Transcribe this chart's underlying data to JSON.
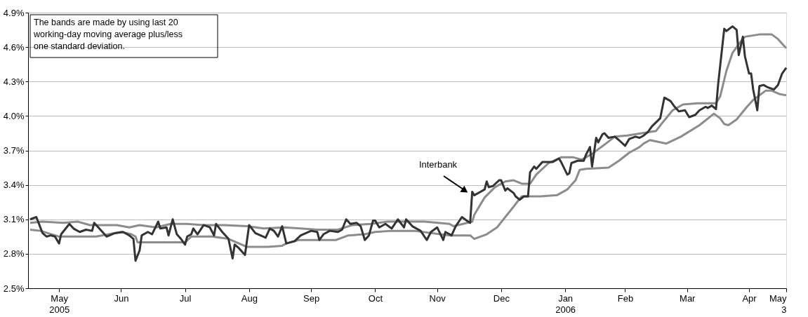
{
  "chart_data": {
    "type": "line",
    "xlim": [
      "2005-05-01",
      "2006-05-03"
    ],
    "xticks": [
      {
        "value": "2005-05-16",
        "label": "May 2005"
      },
      {
        "value": "2005-06-15",
        "label": "Jun"
      },
      {
        "value": "2005-07-16",
        "label": "Jul"
      },
      {
        "value": "2005-08-16",
        "label": "Aug"
      },
      {
        "value": "2005-09-15",
        "label": "Sep"
      },
      {
        "value": "2005-10-16",
        "label": "Oct"
      },
      {
        "value": "2005-11-15",
        "label": "Nov"
      },
      {
        "value": "2005-12-16",
        "label": "Dec"
      },
      {
        "value": "2006-01-16",
        "label": "Jan 2006"
      },
      {
        "value": "2006-02-14",
        "label": "Feb"
      },
      {
        "value": "2006-03-16",
        "label": "Mar"
      },
      {
        "value": "2006-04-15",
        "label": "Apr"
      },
      {
        "value": "2006-05-03",
        "label": "May 3"
      }
    ],
    "ylim": [
      2.5,
      4.9
    ],
    "yticks": [
      {
        "value": 2.5,
        "label": "2.5%"
      },
      {
        "value": 2.8,
        "label": "2.8%"
      },
      {
        "value": 3.1,
        "label": "3.1%"
      },
      {
        "value": 3.4,
        "label": "3.4%"
      },
      {
        "value": 3.7,
        "label": "3.7%"
      },
      {
        "value": 4.0,
        "label": "4.0%"
      },
      {
        "value": 4.3,
        "label": "4.3%"
      },
      {
        "value": 4.6,
        "label": "4.6%"
      },
      {
        "value": 4.9,
        "label": "4.9%"
      }
    ],
    "grid": "y",
    "annotations": [
      "The bands are made by using last 20 working-day moving average plus/less one standard deviation."
    ],
    "series": [
      {
        "color": "#8c8c8c",
        "x": [
          "2005-05-02",
          "2005-05-08",
          "2005-05-18",
          "2005-05-25",
          "2005-05-31",
          "2005-06-13",
          "2005-06-19",
          "2005-06-24",
          "2005-07-02",
          "2005-07-09",
          "2005-07-17",
          "2005-07-25",
          "2005-08-04",
          "2005-08-15",
          "2005-08-23",
          "2005-09-02",
          "2005-09-10",
          "2005-09-18",
          "2005-09-28",
          "2005-10-05",
          "2005-10-14",
          "2005-10-22",
          "2005-11-02",
          "2005-11-09",
          "2005-11-21",
          "2005-11-23",
          "2005-12-02",
          "2005-12-03",
          "2005-12-08",
          "2005-12-13",
          "2005-12-18",
          "2005-12-22",
          "2005-12-26",
          "2005-12-30",
          "2006-01-02",
          "2006-01-08",
          "2006-01-14",
          "2006-01-20",
          "2006-01-24",
          "2006-01-29",
          "2006-02-04",
          "2006-02-09",
          "2006-02-15",
          "2006-02-22",
          "2006-03-01",
          "2006-03-04",
          "2006-03-09",
          "2006-03-14",
          "2006-03-21",
          "2006-03-30",
          "2006-04-01",
          "2006-04-04",
          "2006-04-07",
          "2006-04-11",
          "2006-04-13",
          "2006-04-20",
          "2006-04-26",
          "2006-04-29",
          "2006-05-03"
        ],
        "values": [
          3.07,
          3.08,
          3.07,
          3.08,
          3.05,
          3.05,
          3.03,
          3.05,
          3.03,
          3.06,
          3.06,
          3.05,
          3.05,
          3.04,
          3.02,
          3.03,
          3.02,
          3.01,
          3.01,
          3.05,
          3.06,
          3.08,
          3.08,
          3.08,
          3.06,
          3.04,
          3.08,
          3.14,
          3.29,
          3.38,
          3.43,
          3.44,
          3.41,
          3.41,
          3.49,
          3.59,
          3.64,
          3.64,
          3.62,
          3.67,
          3.75,
          3.82,
          3.83,
          3.85,
          3.87,
          3.94,
          4.05,
          4.1,
          4.11,
          4.11,
          4.17,
          4.39,
          4.55,
          4.65,
          4.69,
          4.71,
          4.71,
          4.67,
          4.59
        ]
      },
      {
        "color": "#8c8c8c",
        "x": [
          "2005-05-02",
          "2005-05-07",
          "2005-05-16",
          "2005-05-21",
          "2005-06-03",
          "2005-06-09",
          "2005-06-15",
          "2005-06-20",
          "2005-06-22",
          "2005-06-23",
          "2005-07-02",
          "2005-07-09",
          "2005-07-16",
          "2005-07-19",
          "2005-07-29",
          "2005-08-06",
          "2005-08-15",
          "2005-08-25",
          "2005-09-01",
          "2005-09-03",
          "2005-09-09",
          "2005-09-27",
          "2005-10-03",
          "2005-10-11",
          "2005-10-16",
          "2005-10-24",
          "2005-11-04",
          "2005-11-21",
          "2005-12-01",
          "2005-12-03",
          "2005-12-09",
          "2005-12-14",
          "2005-12-18",
          "2005-12-22",
          "2005-12-25",
          "2005-12-26",
          "2006-01-04",
          "2006-01-12",
          "2006-01-17",
          "2006-01-21",
          "2006-01-23",
          "2006-01-26",
          "2006-02-06",
          "2006-02-11",
          "2006-02-16",
          "2006-02-21",
          "2006-02-23",
          "2006-02-26",
          "2006-03-06",
          "2006-03-13",
          "2006-03-22",
          "2006-03-29",
          "2006-04-01",
          "2006-04-03",
          "2006-04-05",
          "2006-04-09",
          "2006-04-14",
          "2006-04-17",
          "2006-04-23",
          "2006-04-26",
          "2006-04-30",
          "2006-05-03"
        ],
        "values": [
          3.01,
          3.0,
          2.95,
          2.95,
          2.95,
          2.97,
          2.99,
          2.97,
          2.95,
          2.9,
          2.9,
          2.9,
          2.9,
          2.95,
          2.95,
          2.93,
          2.86,
          2.86,
          2.87,
          2.89,
          2.92,
          2.92,
          2.96,
          2.97,
          2.99,
          3.0,
          3.0,
          2.96,
          2.96,
          2.93,
          2.97,
          3.03,
          3.12,
          3.21,
          3.28,
          3.3,
          3.3,
          3.31,
          3.36,
          3.44,
          3.53,
          3.54,
          3.55,
          3.61,
          3.68,
          3.73,
          3.76,
          3.79,
          3.76,
          3.82,
          3.92,
          4.02,
          3.98,
          3.93,
          3.92,
          3.97,
          4.08,
          4.14,
          4.22,
          4.22,
          4.19,
          4.18
        ]
      },
      {
        "name": "Interbank",
        "color": "#333333",
        "x": [
          "2005-05-02",
          "2005-05-05",
          "2005-05-08",
          "2005-05-10",
          "2005-05-12",
          "2005-05-14",
          "2005-05-16",
          "2005-05-17",
          "2005-05-21",
          "2005-05-23",
          "2005-05-26",
          "2005-05-29",
          "2005-06-01",
          "2005-06-02",
          "2005-06-06",
          "2005-06-08",
          "2005-06-12",
          "2005-06-16",
          "2005-06-19",
          "2005-06-21",
          "2005-06-22",
          "2005-06-24",
          "2005-06-25",
          "2005-06-28",
          "2005-06-30",
          "2005-07-03",
          "2005-07-04",
          "2005-07-07",
          "2005-07-08",
          "2005-07-10",
          "2005-07-12",
          "2005-07-14",
          "2005-07-16",
          "2005-07-17",
          "2005-07-19",
          "2005-07-20",
          "2005-07-22",
          "2005-07-25",
          "2005-07-28",
          "2005-07-30",
          "2005-07-31",
          "2005-08-03",
          "2005-08-06",
          "2005-08-08",
          "2005-08-09",
          "2005-08-11",
          "2005-08-14",
          "2005-08-16",
          "2005-08-19",
          "2005-08-24",
          "2005-08-26",
          "2005-08-28",
          "2005-08-30",
          "2005-09-01",
          "2005-09-03",
          "2005-09-07",
          "2005-09-10",
          "2005-09-15",
          "2005-09-18",
          "2005-09-19",
          "2005-09-21",
          "2005-09-24",
          "2005-09-28",
          "2005-09-30",
          "2005-10-02",
          "2005-10-04",
          "2005-10-07",
          "2005-10-09",
          "2005-10-11",
          "2005-10-13",
          "2005-10-15",
          "2005-10-16",
          "2005-10-18",
          "2005-10-21",
          "2005-10-24",
          "2005-10-27",
          "2005-10-30",
          "2005-10-31",
          "2005-11-03",
          "2005-11-07",
          "2005-11-10",
          "2005-11-12",
          "2005-11-15",
          "2005-11-18",
          "2005-11-19",
          "2005-11-22",
          "2005-11-24",
          "2005-11-27",
          "2005-11-30",
          "2005-12-01",
          "2005-12-02",
          "2005-12-03",
          "2005-12-06",
          "2005-12-08",
          "2005-12-09",
          "2005-12-10",
          "2005-12-12",
          "2005-12-15",
          "2005-12-16",
          "2005-12-18",
          "2005-12-19",
          "2005-12-22",
          "2005-12-23",
          "2005-12-25",
          "2005-12-27",
          "2005-12-29",
          "2005-12-30",
          "2006-01-01",
          "2006-01-02",
          "2006-01-05",
          "2006-01-07",
          "2006-01-10",
          "2006-01-13",
          "2006-01-14",
          "2006-01-17",
          "2006-01-18",
          "2006-01-19",
          "2006-01-22",
          "2006-01-25",
          "2006-01-26",
          "2006-01-28",
          "2006-01-29",
          "2006-01-31",
          "2006-02-01",
          "2006-02-03",
          "2006-02-04",
          "2006-02-06",
          "2006-02-09",
          "2006-02-11",
          "2006-02-14",
          "2006-02-16",
          "2006-02-19",
          "2006-02-21",
          "2006-02-23",
          "2006-02-25",
          "2006-02-27",
          "2006-03-03",
          "2006-03-05",
          "2006-03-08",
          "2006-03-10",
          "2006-03-12",
          "2006-03-15",
          "2006-03-17",
          "2006-03-20",
          "2006-03-22",
          "2006-03-25",
          "2006-03-26",
          "2006-03-28",
          "2006-03-30",
          "2006-03-31",
          "2006-04-03",
          "2006-04-04",
          "2006-04-07",
          "2006-04-09",
          "2006-04-10",
          "2006-04-12",
          "2006-04-13",
          "2006-04-15",
          "2006-04-16",
          "2006-04-17",
          "2006-04-19",
          "2006-04-20",
          "2006-04-22",
          "2006-04-24",
          "2006-04-27",
          "2006-04-29",
          "2006-05-01",
          "2006-05-03"
        ],
        "values": [
          3.1,
          3.12,
          2.98,
          2.95,
          2.96,
          2.95,
          2.89,
          2.97,
          3.06,
          3.02,
          2.99,
          3.01,
          3.0,
          3.07,
          2.99,
          2.95,
          2.98,
          2.99,
          2.96,
          2.93,
          2.74,
          2.83,
          2.96,
          2.99,
          2.97,
          3.08,
          3.02,
          3.03,
          2.96,
          3.1,
          2.97,
          2.93,
          2.88,
          2.95,
          2.97,
          3.02,
          2.97,
          3.05,
          3.03,
          2.96,
          3.06,
          2.99,
          2.93,
          2.76,
          2.88,
          2.85,
          2.79,
          3.05,
          2.98,
          2.94,
          3.02,
          3.0,
          2.95,
          3.04,
          2.89,
          2.91,
          2.96,
          3.0,
          2.99,
          2.92,
          2.97,
          3.0,
          2.99,
          3.01,
          3.1,
          3.06,
          3.07,
          3.04,
          2.92,
          2.96,
          3.09,
          3.09,
          3.03,
          3.06,
          3.02,
          3.1,
          3.03,
          3.1,
          3.04,
          3.0,
          2.92,
          2.99,
          3.03,
          2.92,
          2.99,
          2.96,
          3.04,
          3.12,
          3.08,
          3.07,
          3.34,
          3.31,
          3.34,
          3.36,
          3.43,
          3.38,
          3.39,
          3.44,
          3.44,
          3.35,
          3.37,
          3.33,
          3.3,
          3.27,
          3.3,
          3.3,
          3.51,
          3.56,
          3.54,
          3.6,
          3.6,
          3.6,
          3.63,
          3.6,
          3.49,
          3.5,
          3.59,
          3.61,
          3.61,
          3.66,
          3.73,
          3.56,
          3.81,
          3.77,
          3.84,
          3.85,
          3.81,
          3.82,
          3.79,
          3.74,
          3.8,
          3.82,
          3.81,
          3.83,
          3.86,
          3.91,
          3.98,
          4.16,
          4.13,
          4.08,
          4.04,
          4.05,
          3.99,
          4.01,
          4.05,
          4.08,
          4.07,
          4.09,
          4.06,
          4.27,
          4.76,
          4.74,
          4.78,
          4.75,
          4.53,
          4.69,
          4.52,
          4.37,
          4.37,
          4.23,
          4.05,
          4.26,
          4.27,
          4.25,
          4.23,
          4.27,
          4.37,
          4.42
        ]
      }
    ]
  }
}
